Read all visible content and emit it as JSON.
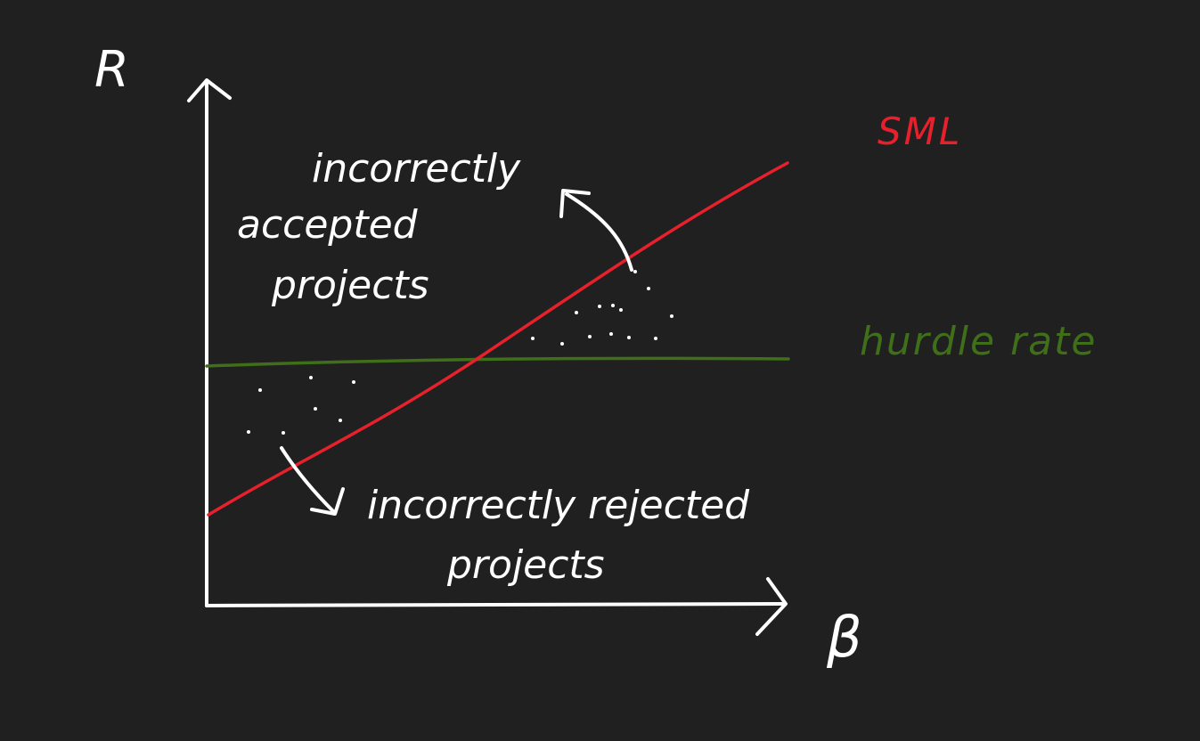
{
  "diagram": {
    "labels": {
      "y_axis": "R",
      "x_axis": "β",
      "sml": "SML",
      "hurdle_rate": "hurdle rate",
      "incorrectly_accepted": [
        "incorrectly",
        "accepted",
        "projects"
      ],
      "incorrectly_rejected": [
        "incorrectly rejected",
        "projects"
      ]
    },
    "colors": {
      "background": "#212020",
      "axes": "#ffffff",
      "sml_line": "#e8202c",
      "hurdle_line": "#3f6f18",
      "dots": "#ffffff"
    }
  }
}
